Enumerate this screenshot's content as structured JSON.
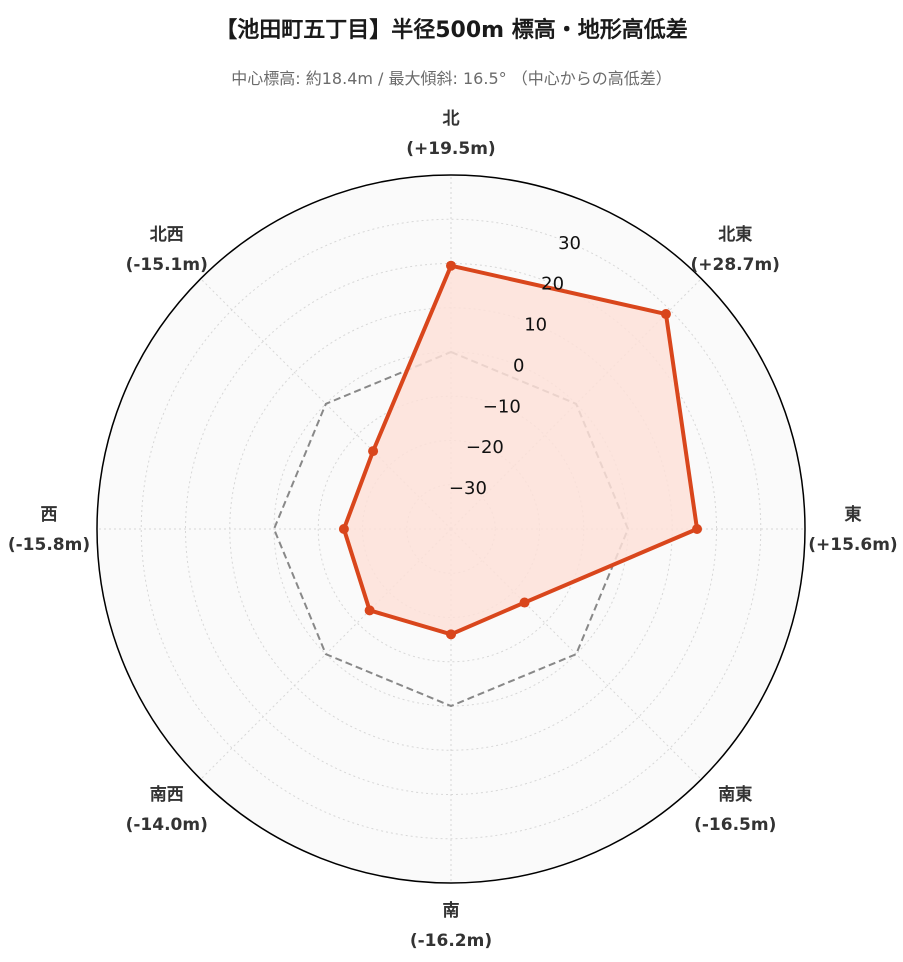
{
  "chart_data": {
    "type": "radar",
    "title": "【池田町五丁目】半径500m 標高・地形高低差",
    "subtitle": "中心標高: 約18.4m / 最大傾斜: 16.5° （中心からの高低差）",
    "directions": [
      "北",
      "北東",
      "東",
      "南東",
      "南",
      "南西",
      "西",
      "北西"
    ],
    "direction_labels": [
      "(+19.5m)",
      "(+28.7m)",
      "(+15.6m)",
      "(-16.5m)",
      "(-16.2m)",
      "(-14.0m)",
      "(-15.8m)",
      "(-15.1m)"
    ],
    "values": [
      19.5,
      28.7,
      15.6,
      -16.5,
      -16.2,
      -14.0,
      -15.8,
      -15.1
    ],
    "reference_value": 0,
    "radial_ticks": [
      "30",
      "20",
      "10",
      "0",
      "−10",
      "−20",
      "−30"
    ],
    "radial_tick_values": [
      30,
      20,
      10,
      0,
      -10,
      -20,
      -30
    ],
    "rlim": [
      -40,
      40
    ],
    "grid": true,
    "colors": {
      "series_line": "#d9461c",
      "series_fill": "#fde0d8",
      "reference_line": "#888888",
      "background": "#fafafa",
      "grid": "#d7d7d7",
      "outer_ring": "#000000"
    }
  }
}
